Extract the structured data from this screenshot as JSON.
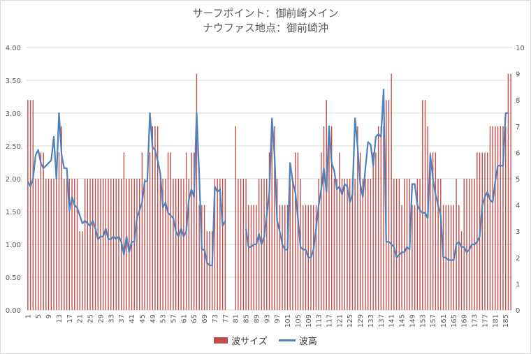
{
  "chart_data": {
    "type": "bar+line",
    "title": "サーフポイント：御前崎メイン",
    "subtitle": "ナウファス地点：御前崎沖",
    "x": {
      "start": 1,
      "end": 187,
      "tick_step": 4
    },
    "y_left": {
      "min": 0,
      "max": 4,
      "ticks": [
        "0.00",
        "0.50",
        "1.00",
        "1.50",
        "2.00",
        "2.50",
        "3.00",
        "3.50",
        "4.00"
      ]
    },
    "y_right": {
      "min": 0,
      "max": 10,
      "ticks": [
        "0",
        "1",
        "2",
        "3",
        "4",
        "5",
        "6",
        "7",
        "8",
        "9",
        "10"
      ]
    },
    "grid": "horizontal",
    "legend_position": "bottom",
    "series": [
      {
        "name": "波サイズ",
        "axis": "left",
        "kind": "bar",
        "color": "#c0504d",
        "values": [
          3.2,
          3.2,
          3.2,
          2.0,
          2.0,
          2.4,
          2.4,
          2.0,
          2.0,
          2.0,
          2.0,
          2.0,
          2.4,
          2.8,
          2.0,
          2.0,
          2.0,
          2.0,
          2.0,
          2.0,
          1.2,
          1.2,
          2.0,
          2.0,
          2.0,
          2.0,
          2.0,
          2.0,
          2.0,
          2.0,
          2.0,
          2.0,
          2.0,
          2.0,
          2.0,
          2.0,
          2.0,
          2.4,
          2.0,
          2.0,
          2.0,
          2.0,
          2.0,
          2.0,
          2.4,
          2.0,
          2.0,
          2.4,
          2.8,
          2.8,
          2.8,
          2.0,
          2.0,
          2.0,
          2.4,
          2.4,
          2.0,
          2.0,
          2.0,
          2.0,
          2.0,
          2.4,
          2.0,
          2.4,
          2.4,
          3.6,
          1.6,
          1.6,
          1.6,
          1.2,
          1.2,
          1.2,
          2.0,
          2.0,
          2.0,
          2.0,
          2.0,
          null,
          null,
          null,
          2.8,
          2.0,
          2.0,
          2.0,
          2.0,
          1.6,
          1.6,
          1.6,
          1.6,
          2.0,
          2.0,
          2.0,
          2.0,
          2.4,
          2.8,
          2.8,
          2.0,
          1.6,
          1.6,
          1.6,
          1.6,
          2.0,
          2.0,
          2.4,
          2.4,
          2.0,
          1.6,
          1.6,
          1.6,
          1.6,
          1.6,
          1.6,
          2.0,
          2.4,
          2.8,
          3.2,
          2.8,
          2.8,
          2.0,
          2.0,
          2.4,
          2.0,
          2.0,
          2.0,
          2.0,
          2.0,
          2.0,
          2.8,
          2.4,
          2.0,
          2.0,
          2.0,
          2.0,
          2.4,
          2.4,
          2.8,
          2.8,
          2.8,
          3.2,
          3.2,
          3.6,
          2.0,
          2.0,
          2.0,
          1.6,
          2.0,
          2.0,
          2.0,
          1.6,
          1.6,
          2.0,
          2.0,
          3.2,
          3.2,
          2.8,
          2.4,
          2.4,
          2.4,
          2.0,
          2.0,
          1.6,
          1.6,
          1.6,
          1.6,
          1.6,
          2.0,
          1.6,
          1.2,
          2.0,
          2.0,
          2.0,
          2.0,
          2.0,
          2.4,
          2.4,
          2.4,
          2.4,
          2.4,
          2.8,
          2.8,
          2.8,
          2.8,
          2.8,
          2.8,
          2.8,
          3.6,
          3.6
        ]
      },
      {
        "name": "波高",
        "axis": "right",
        "kind": "line",
        "color": "#4f81bd",
        "values": [
          4.9,
          4.7,
          5.0,
          5.9,
          6.1,
          5.6,
          5.4,
          5.5,
          5.6,
          5.7,
          6.6,
          5.0,
          7.5,
          5.9,
          5.4,
          5.4,
          3.8,
          4.3,
          4.0,
          3.9,
          3.6,
          3.3,
          3.4,
          3.3,
          3.2,
          3.4,
          3.1,
          2.7,
          2.8,
          2.8,
          3.1,
          2.7,
          2.7,
          2.8,
          2.7,
          2.8,
          2.6,
          2.1,
          2.8,
          2.2,
          2.6,
          2.6,
          3.5,
          3.8,
          4.1,
          4.9,
          4.9,
          7.5,
          6.2,
          6.1,
          5.7,
          5.2,
          3.9,
          4.1,
          3.7,
          3.6,
          3.5,
          3.0,
          2.8,
          3.1,
          2.8,
          3.0,
          4.2,
          4.6,
          4.3,
          7.5,
          5.1,
          2.3,
          2.3,
          1.8,
          1.7,
          1.7,
          4.7,
          4.5,
          4.6,
          3.2,
          3.4,
          null,
          null,
          null,
          null,
          null,
          null,
          null,
          3.1,
          2.4,
          2.4,
          2.5,
          2.5,
          2.9,
          2.5,
          2.8,
          3.6,
          4.5,
          7.3,
          5.9,
          3.4,
          3.0,
          2.5,
          2.3,
          2.3,
          5.6,
          4.9,
          4.5,
          3.5,
          2.4,
          2.3,
          2.3,
          2.0,
          2.0,
          2.3,
          3.1,
          4.0,
          4.6,
          5.4,
          4.5,
          7.0,
          5.6,
          5.3,
          4.6,
          4.7,
          4.4,
          4.8,
          4.7,
          4.1,
          4.4,
          7.3,
          6.2,
          4.8,
          4.3,
          5.4,
          6.4,
          6.3,
          5.5,
          6.6,
          6.7,
          6.6,
          8.4,
          2.6,
          2.6,
          2.5,
          2.4,
          2.0,
          2.1,
          2.2,
          2.2,
          2.4,
          2.3,
          4.8,
          4.8,
          4.0,
          3.8,
          3.7,
          3.7,
          3.5,
          5.9,
          5.0,
          4.4,
          4.0,
          3.6,
          2.0,
          2.0,
          1.9,
          1.9,
          1.9,
          2.5,
          2.6,
          2.4,
          2.4,
          2.2,
          2.3,
          2.5,
          2.5,
          2.6,
          2.8,
          4.0,
          4.3,
          4.5,
          4.2,
          4.1,
          4.9,
          5.5,
          5.5,
          5.5,
          7.5,
          7.5
        ]
      }
    ]
  }
}
